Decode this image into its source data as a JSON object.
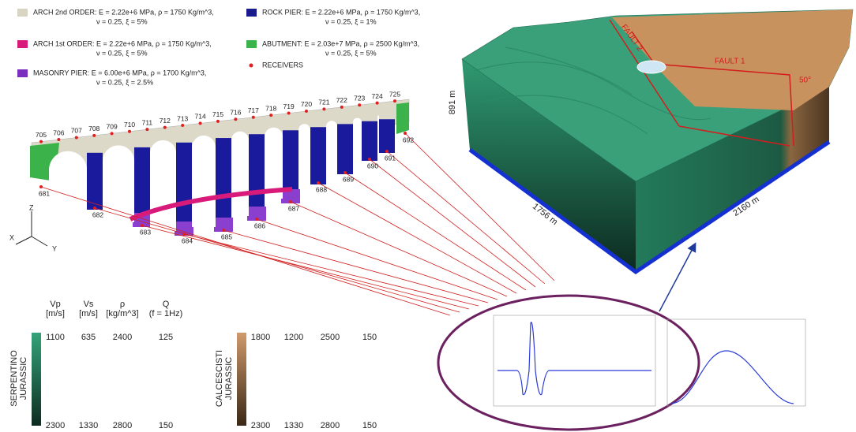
{
  "legend": [
    {
      "label": "ARCH 2nd ORDER: E = 2.22e+6 MPa, ρ = 1750 Kg/m^3,",
      "detail": "ν = 0.25, ξ = 5%"
    },
    {
      "label": "ARCH 1st ORDER: E = 2.22e+6 MPa, ρ = 1750 Kg/m^3,",
      "detail": "ν = 0.25, ξ = 5%"
    },
    {
      "label": "MASONRY PIER: E = 6.00e+6 MPa, ρ = 1700 Kg/m^3,",
      "detail": "ν = 0.25, ξ = 2.5%"
    },
    {
      "label": "ROCK PIER: E = 2.22e+6 MPa, ρ = 1750 Kg/m^3,",
      "detail": "ν = 0.25, ξ = 1%"
    },
    {
      "label": "ABUTMENT: E = 2.03e+7 MPa, ρ = 2500 Kg/m^3,",
      "detail": "ν = 0.25, ξ = 5%"
    },
    {
      "label": "RECEIVERS"
    }
  ],
  "receivers": {
    "top": [
      705,
      706,
      707,
      708,
      709,
      710,
      711,
      712,
      713,
      714,
      715,
      716,
      717,
      718,
      719,
      720,
      721,
      722,
      723,
      724,
      725
    ],
    "bottom": [
      681,
      682,
      683,
      684,
      685,
      686,
      687,
      688,
      689,
      690,
      691,
      692
    ]
  },
  "axes": {
    "z": "Z",
    "x": "X",
    "y": "Y"
  },
  "model": {
    "height": "891 m",
    "width": "1756 m",
    "length": "2160 m",
    "fault1": "FAULT 1",
    "fault2": "FAULT 2",
    "angle": "50°"
  },
  "table": {
    "headers": [
      [
        "Vp",
        "[m/s]"
      ],
      [
        "Vs",
        "[m/s]"
      ],
      [
        "ρ",
        "[kg/m^3]"
      ],
      [
        "Q",
        "(f = 1Hz)"
      ]
    ],
    "serpentino": {
      "name": [
        "SERPENTINO",
        "JURASSIC"
      ],
      "top": [
        1100,
        635,
        2400,
        125
      ],
      "bottom": [
        2300,
        1330,
        2800,
        150
      ]
    },
    "calcescisti": {
      "name": [
        "CALCESCISTI",
        "JURASSIC"
      ],
      "top": [
        1800,
        1200,
        2500,
        150
      ],
      "bottom": [
        2300,
        1330,
        2800,
        150
      ]
    }
  }
}
